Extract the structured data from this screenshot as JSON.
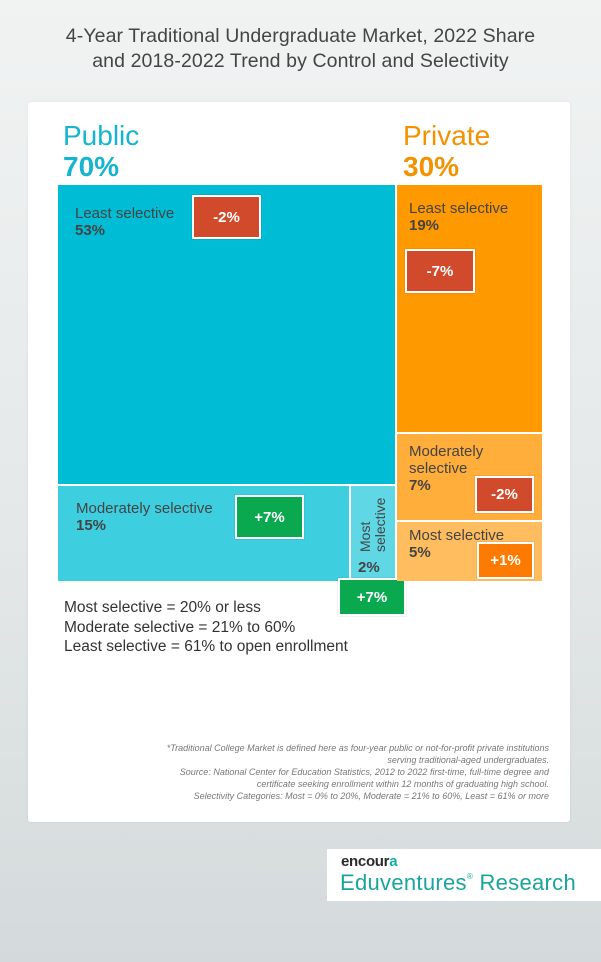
{
  "header": {
    "title_line1": "4-Year Traditional Undergraduate Market, 2022 Share",
    "title_line2": "and 2018-2022 Trend by Control and Selectivity"
  },
  "chart_data": {
    "type": "treemap",
    "title": "4-Year Traditional Undergraduate Market, 2022 Share and 2018-2022 Trend by Control and Selectivity",
    "groups": [
      {
        "name": "Public",
        "share": "70%",
        "color": "#00bcd4",
        "segments": [
          {
            "name": "Least selective",
            "share": "53%",
            "share_value": 53,
            "trend": "-2%",
            "trend_value": -2,
            "color": "#00bcd4",
            "trend_color": "#d14a2b"
          },
          {
            "name": "Moderately selective",
            "share": "15%",
            "share_value": 15,
            "trend": "+7%",
            "trend_value": 7,
            "color": "#3dcfe0",
            "trend_color": "#0aa84f"
          },
          {
            "name": "Most selective",
            "share": "2%",
            "share_value": 2,
            "trend": "+7%",
            "trend_value": 7,
            "color": "#5fd7e5",
            "trend_color": "#0aa84f"
          }
        ]
      },
      {
        "name": "Private",
        "share": "30%",
        "color": "#ff9900",
        "segments": [
          {
            "name": "Least selective",
            "share": "19%",
            "share_value": 19,
            "trend": "-7%",
            "trend_value": -7,
            "color": "#ff9900",
            "trend_color": "#d14a2b"
          },
          {
            "name_line1": "Moderately",
            "name_line2": "selective",
            "share": "7%",
            "share_value": 7,
            "trend": "-2%",
            "trend_value": -2,
            "color": "#ffad3b",
            "trend_color": "#d14a2b"
          },
          {
            "name": "Most selective",
            "share": "5%",
            "share_value": 5,
            "trend": "+1%",
            "trend_value": 1,
            "color": "#ffbd60",
            "trend_color": "#ff7a00"
          }
        ]
      }
    ]
  },
  "legend": {
    "line1": "Most selective = 20% or less",
    "line2": "Moderate selective = 21% to 60%",
    "line3": "Least selective = 61% to open enrollment"
  },
  "footnote": {
    "line1": "*Traditional College Market is defined here as four-year public or not-for-profit private institutions",
    "line2": "serving traditional-aged undergraduates.",
    "line3": "Source: National Center for Education Statistics, 2012 to 2022 first-time, full-time degree and",
    "line4": "certificate seeking enrollment within 12 months of graduating high school.",
    "line5": "Selectivity Categories: Most = 0% to 20%, Moderate = 21% to 60%, Least = 61% or more"
  },
  "logo": {
    "brand_main": "encour",
    "brand_accent": "a",
    "product": "Eduventures",
    "product_suffix": "Research",
    "trademark": "®"
  }
}
